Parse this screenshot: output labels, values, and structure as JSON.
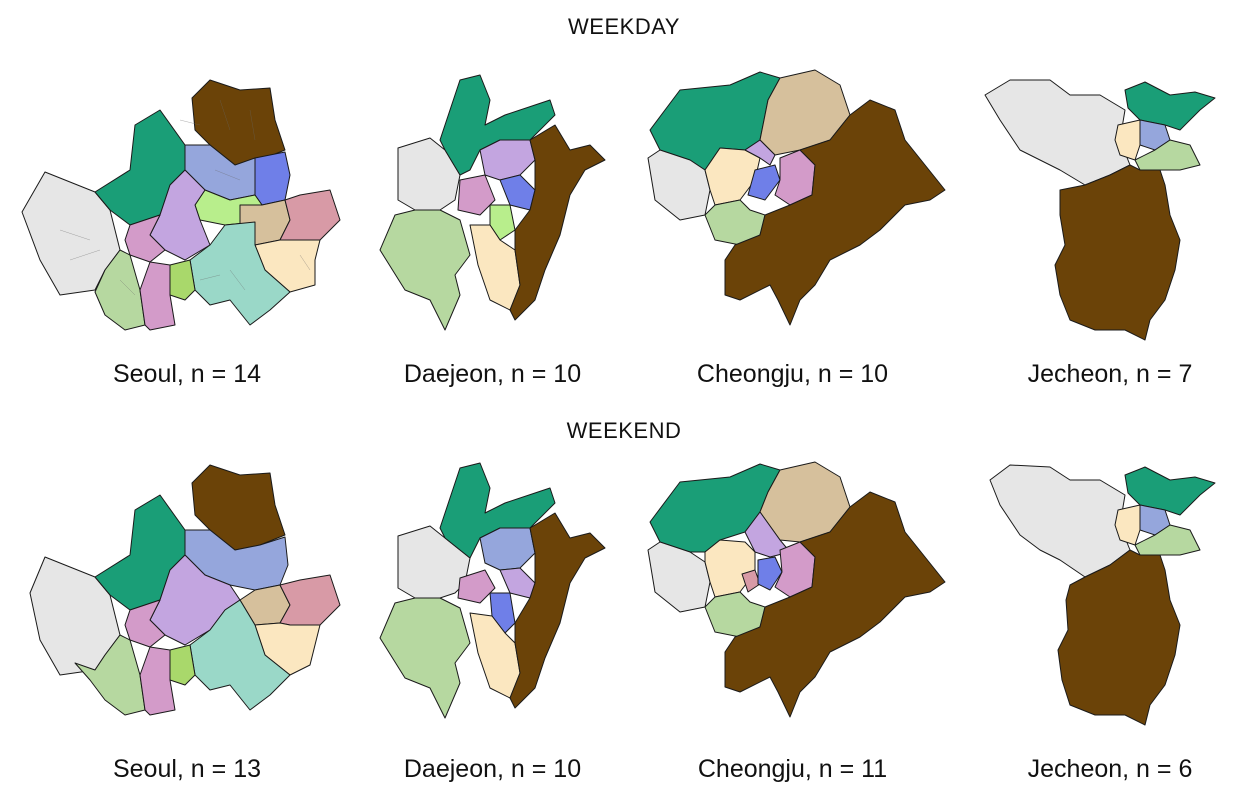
{
  "rows": [
    {
      "title": "WEEKDAY",
      "panels": [
        {
          "caption": "Seoul, n = 14"
        },
        {
          "caption": "Daejeon, n = 10"
        },
        {
          "caption": "Cheongju, n = 10"
        },
        {
          "caption": "Jecheon, n = 7"
        }
      ]
    },
    {
      "title": "WEEKEND",
      "panels": [
        {
          "caption": "Seoul, n = 13"
        },
        {
          "caption": "Daejeon, n = 10"
        },
        {
          "caption": "Cheongju, n = 11"
        },
        {
          "caption": "Jecheon, n = 6"
        }
      ]
    }
  ],
  "palette": {
    "brown": "#6b4308",
    "teal": "#1a9e77",
    "light_gray": "#e6e6e6",
    "lavender": "#c3a5e0",
    "periwinkle": "#95a6dc",
    "blue": "#6f7fe8",
    "pink": "#d39bc9",
    "rose": "#d89aa6",
    "tan": "#d6c09c",
    "cream": "#fbe7c0",
    "sage": "#b6d8a0",
    "lime": "#b8ee8c",
    "aqua": "#9ad8c8",
    "olive_green": "#a9d86b"
  }
}
